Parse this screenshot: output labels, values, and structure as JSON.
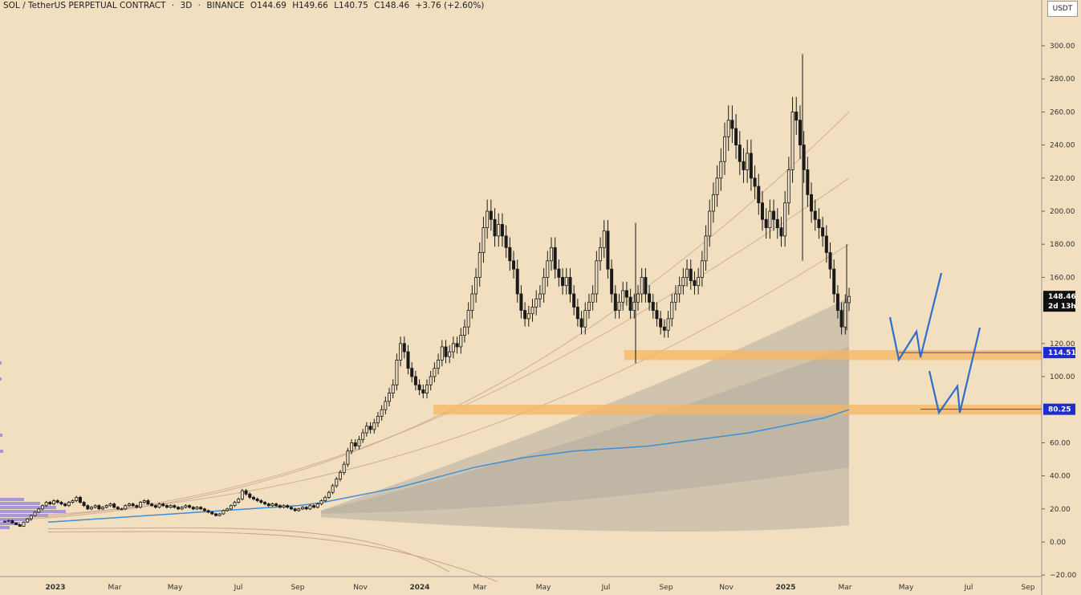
{
  "header": {
    "symbol": "SOL / TetherUS PERPETUAL CONTRACT",
    "interval": "3D",
    "exchange": "BINANCE",
    "open": "O144.69",
    "high": "H149.66",
    "low": "L140.75",
    "close": "C148.46",
    "change": "+3.76 (+2.60%)"
  },
  "currency": "USDT",
  "price_axis": {
    "ticks": [
      "300.00",
      "280.00",
      "260.00",
      "240.00",
      "220.00",
      "200.00",
      "180.00",
      "160.00",
      "120.00",
      "100.00",
      "60.00",
      "40.00",
      "20.00",
      "0.00",
      "−20.00"
    ],
    "last_price": "148.46",
    "countdown": "2d 13h",
    "level_1": "114.51",
    "level_2": "80.25"
  },
  "time_axis": {
    "labels": [
      "2023",
      "Mar",
      "May",
      "Jul",
      "Sep",
      "Nov",
      "2024",
      "Mar",
      "May",
      "Jul",
      "Sep",
      "Nov",
      "2025",
      "Mar",
      "May",
      "Jul",
      "Sep"
    ]
  },
  "colors": {
    "background": "#f2dfc0",
    "candle": "#1a1a1a",
    "zone": "#f5b660",
    "vwap": "#3d8fd6",
    "drawing": "#2f6fcc",
    "level_badge": "#1f2cc9",
    "price_badge": "#111111"
  },
  "chart_data": {
    "type": "candlestick",
    "ylim": [
      -20,
      320
    ],
    "y_ticks": [
      300,
      280,
      260,
      240,
      220,
      200,
      180,
      160,
      120,
      100,
      60,
      40,
      20,
      0,
      -20
    ],
    "closes": [
      12.5,
      13,
      11.5,
      10.5,
      9.5,
      12,
      14,
      16,
      18,
      20,
      22,
      24,
      23,
      25,
      24,
      23,
      22,
      24,
      25,
      27,
      24,
      22,
      20,
      21,
      22,
      20,
      21,
      22,
      23,
      21,
      20,
      20,
      22,
      23,
      22,
      21,
      24,
      25,
      23,
      22,
      21,
      23,
      22,
      21,
      22,
      21,
      20,
      21,
      22,
      21,
      20,
      21,
      20,
      19,
      18,
      17,
      16,
      17,
      19,
      20,
      22,
      24,
      26,
      31,
      29,
      27,
      26,
      25,
      24,
      23,
      22,
      23,
      22,
      21,
      22,
      21,
      20,
      19,
      20,
      21,
      20,
      22,
      21,
      23,
      25,
      27,
      30,
      34,
      38,
      42,
      47,
      55,
      60,
      58,
      62,
      66,
      70,
      68,
      72,
      76,
      80,
      85,
      90,
      95,
      110,
      120,
      115,
      105,
      100,
      95,
      92,
      90,
      95,
      100,
      105,
      110,
      118,
      112,
      115,
      120,
      118,
      125,
      130,
      140,
      150,
      160,
      175,
      190,
      200,
      195,
      185,
      192,
      185,
      178,
      170,
      165,
      150,
      140,
      135,
      138,
      142,
      147,
      150,
      160,
      170,
      178,
      165,
      160,
      155,
      160,
      150,
      142,
      135,
      130,
      140,
      145,
      150,
      170,
      178,
      188,
      165,
      150,
      140,
      145,
      152,
      148,
      140,
      145,
      150,
      160,
      150,
      145,
      140,
      135,
      130,
      128,
      135,
      145,
      150,
      155,
      160,
      165,
      158,
      155,
      160,
      170,
      185,
      200,
      210,
      220,
      230,
      245,
      255,
      250,
      240,
      230,
      225,
      235,
      220,
      215,
      205,
      195,
      190,
      200,
      195,
      190,
      185,
      205,
      225,
      260,
      255,
      240,
      225,
      210,
      200,
      195,
      190,
      185,
      175,
      165,
      150,
      140,
      130,
      144.69,
      148.46
    ],
    "vwap": [
      12,
      13,
      14,
      15,
      16,
      17,
      18,
      19,
      20,
      21,
      22,
      24,
      27,
      30,
      33,
      37,
      41,
      45,
      48,
      51,
      53,
      55,
      56,
      57,
      58,
      60,
      62,
      64,
      66,
      69,
      72,
      75,
      80
    ],
    "zones": [
      {
        "top": 116,
        "bottom": 110,
        "label": "114.51"
      },
      {
        "top": 83,
        "bottom": 77,
        "label": "80.25"
      }
    ],
    "drawings": [
      "projected W path (upper)",
      "projected W path (lower)"
    ],
    "x_labels": [
      "2023",
      "Mar",
      "May",
      "Jul",
      "Sep",
      "Nov",
      "2024",
      "Mar",
      "May",
      "Jul",
      "Sep",
      "Nov",
      "2025",
      "Mar",
      "May",
      "Jul",
      "Sep"
    ],
    "last_value": 148.46,
    "grid": false,
    "legend": "none"
  }
}
